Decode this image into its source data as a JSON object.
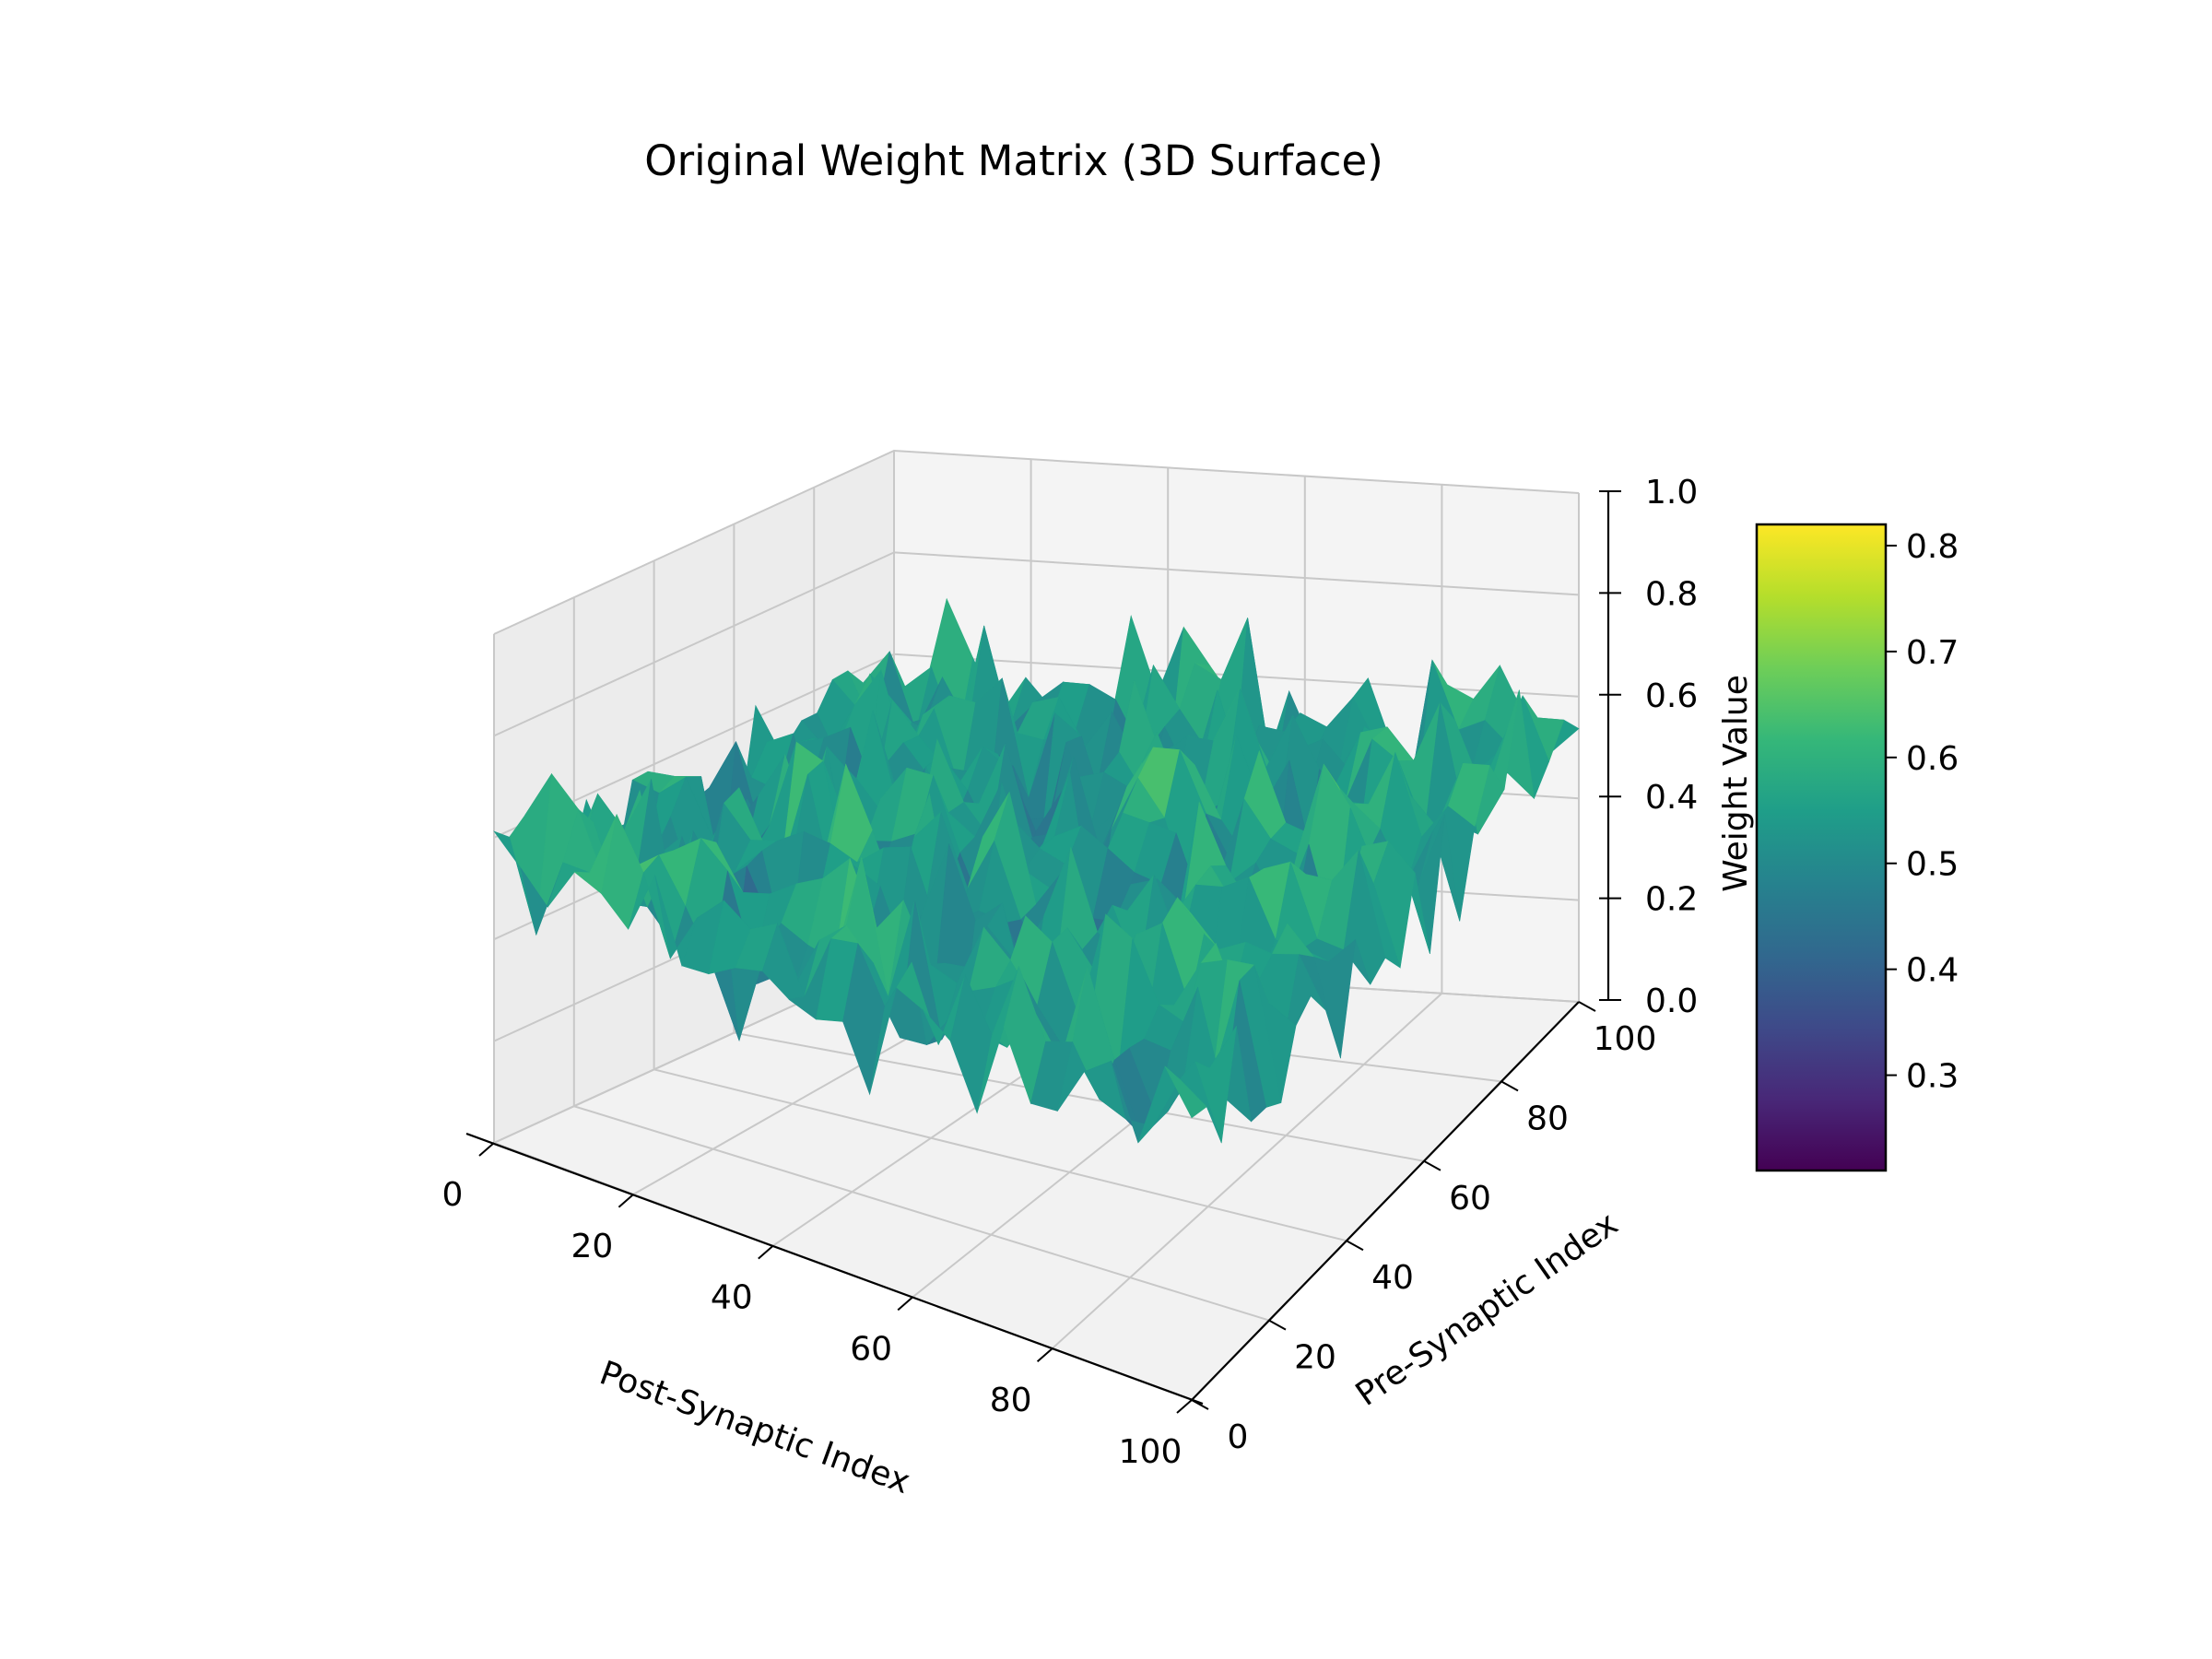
{
  "chart_data": {
    "type": "surface3d",
    "title": "Original Weight Matrix (3D Surface)",
    "xlabel": "Post-Synaptic Index",
    "ylabel": "Pre-Synaptic Index",
    "zlabel": "Weight Value",
    "xlim": [
      0,
      100
    ],
    "ylim": [
      0,
      100
    ],
    "zlim": [
      0,
      1.0
    ],
    "x_ticks": [
      "0",
      "20",
      "40",
      "60",
      "80",
      "100"
    ],
    "y_ticks": [
      "0",
      "20",
      "40",
      "60",
      "80",
      "100"
    ],
    "z_ticks": [
      "0.0",
      "0.2",
      "0.4",
      "0.6",
      "0.8",
      "1.0"
    ],
    "colormap": "viridis",
    "colorbar": {
      "min": 0.21,
      "max": 0.82,
      "ticks": [
        "0.3",
        "0.4",
        "0.5",
        "0.6",
        "0.7",
        "0.8"
      ],
      "tick_values": [
        0.3,
        0.4,
        0.5,
        0.6,
        0.7,
        0.8
      ]
    },
    "grid": true,
    "data_description_value_range": [
      0.21,
      0.82
    ]
  }
}
